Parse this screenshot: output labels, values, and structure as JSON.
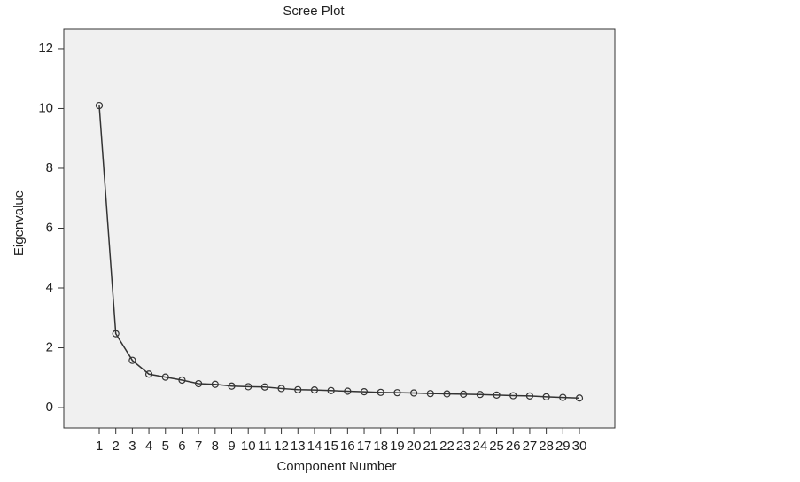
{
  "chart_data": {
    "type": "line",
    "title": "Scree Plot",
    "x_label": "Component Number",
    "y_label": "Eigenvalue",
    "x": [
      1,
      2,
      3,
      4,
      5,
      6,
      7,
      8,
      9,
      10,
      11,
      12,
      13,
      14,
      15,
      16,
      17,
      18,
      19,
      20,
      21,
      22,
      23,
      24,
      25,
      26,
      27,
      28,
      29,
      30
    ],
    "series": [
      {
        "values": [
          10.1,
          2.47,
          1.58,
          1.12,
          1.02,
          0.92,
          0.8,
          0.78,
          0.72,
          0.7,
          0.69,
          0.64,
          0.6,
          0.59,
          0.57,
          0.55,
          0.53,
          0.51,
          0.5,
          0.49,
          0.47,
          0.46,
          0.45,
          0.44,
          0.42,
          0.4,
          0.39,
          0.36,
          0.34,
          0.32
        ],
        "color": "#333333"
      }
    ],
    "xlim": [
      -1.14,
      32.14
    ],
    "xticks": [
      1,
      2,
      3,
      4,
      5,
      6,
      7,
      8,
      9,
      10,
      11,
      12,
      13,
      14,
      15,
      16,
      17,
      18,
      19,
      20,
      21,
      22,
      23,
      24,
      25,
      26,
      27,
      28,
      29,
      30
    ],
    "ylim": [
      -0.68,
      12.65
    ],
    "yticks": [
      0,
      2,
      4,
      6,
      8,
      10,
      12
    ],
    "plot_background": "#f0f0f0",
    "marker": "circle"
  }
}
